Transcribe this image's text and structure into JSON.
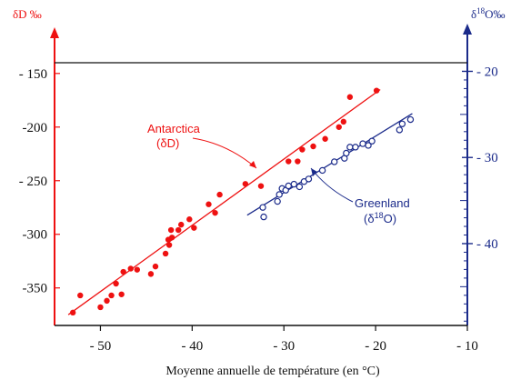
{
  "chart_data": {
    "type": "scatter",
    "xlabel": "Moyenne annuelle de température  (en °C)",
    "ylabel_left": "δD ‰",
    "ylabel_right": "δ18O‰",
    "xlim": [
      -55,
      -10
    ],
    "ylim_left": [
      -385,
      -140
    ],
    "ylim_right": [
      -49.5,
      -19
    ],
    "x_ticks": [
      -50,
      -40,
      -30,
      -20,
      -10
    ],
    "x_tick_labels": [
      "- 50",
      "- 40",
      "- 30",
      "- 20",
      "- 10"
    ],
    "y_left_ticks": [
      -150,
      -200,
      -250,
      -300,
      -350
    ],
    "y_left_tick_labels": [
      "- 150",
      "-200",
      "- 250",
      "-300",
      "-350"
    ],
    "y_right_ticks": [
      -20,
      -30,
      -40
    ],
    "y_right_tick_labels": [
      "- 20",
      "- 30",
      "- 40"
    ],
    "colors": {
      "antarctica": "#ee1111",
      "greenland": "#1a2a8a"
    },
    "series": [
      {
        "name": "Antarctica (δD)",
        "axis": "left",
        "marker": "filled-circle",
        "fit_line": {
          "x": [
            -53.5,
            -19.5
          ],
          "y": [
            -375,
            -165
          ]
        },
        "points": [
          [
            -53,
            -373
          ],
          [
            -52.2,
            -357
          ],
          [
            -50,
            -368
          ],
          [
            -49.3,
            -362
          ],
          [
            -48.8,
            -357
          ],
          [
            -48.3,
            -346
          ],
          [
            -47.7,
            -356
          ],
          [
            -47.5,
            -335
          ],
          [
            -46.7,
            -332
          ],
          [
            -46,
            -333
          ],
          [
            -44.5,
            -337
          ],
          [
            -44,
            -330
          ],
          [
            -42.9,
            -318
          ],
          [
            -42.5,
            -310
          ],
          [
            -42.6,
            -305
          ],
          [
            -42.2,
            -303
          ],
          [
            -42.3,
            -296
          ],
          [
            -41.5,
            -296
          ],
          [
            -41.2,
            -291
          ],
          [
            -40.3,
            -286
          ],
          [
            -39.8,
            -294
          ],
          [
            -38.2,
            -272
          ],
          [
            -37.5,
            -280
          ],
          [
            -37,
            -263
          ],
          [
            -34.2,
            -253
          ],
          [
            -32.5,
            -255
          ],
          [
            -29.5,
            -232
          ],
          [
            -28.5,
            -232
          ],
          [
            -28,
            -221
          ],
          [
            -26.8,
            -218
          ],
          [
            -25.5,
            -211
          ],
          [
            -24,
            -200
          ],
          [
            -23.5,
            -195
          ],
          [
            -22.8,
            -172
          ],
          [
            -19.9,
            -166
          ]
        ]
      },
      {
        "name": "Greenland (δ18O)",
        "axis": "right",
        "marker": "open-circle",
        "fit_line": {
          "x": [
            -34,
            -16
          ],
          "y": [
            -36.7,
            -24.9
          ]
        },
        "points": [
          [
            -32.2,
            -36.9
          ],
          [
            -32.3,
            -35.8
          ],
          [
            -30.7,
            -35.1
          ],
          [
            -30.5,
            -34.3
          ],
          [
            -30.2,
            -33.6
          ],
          [
            -29.8,
            -33.8
          ],
          [
            -29.5,
            -33.3
          ],
          [
            -28.9,
            -33.1
          ],
          [
            -28.3,
            -33.4
          ],
          [
            -27.8,
            -32.8
          ],
          [
            -27.3,
            -32.5
          ],
          [
            -25.8,
            -31.5
          ],
          [
            -24.5,
            -30.5
          ],
          [
            -23.4,
            -30.1
          ],
          [
            -23.2,
            -29.5
          ],
          [
            -22.8,
            -28.8
          ],
          [
            -22.2,
            -28.8
          ],
          [
            -21.4,
            -28.4
          ],
          [
            -20.8,
            -28.6
          ],
          [
            -20.4,
            -28.1
          ],
          [
            -17.4,
            -26.8
          ],
          [
            -17.1,
            -26.1
          ],
          [
            -16.2,
            -25.6
          ]
        ]
      }
    ],
    "annotations": [
      {
        "series": 0,
        "lines": [
          "Antarctica",
          "(δD)"
        ]
      },
      {
        "series": 1,
        "lines": [
          "Greenland",
          "(δ18O)"
        ]
      }
    ]
  }
}
